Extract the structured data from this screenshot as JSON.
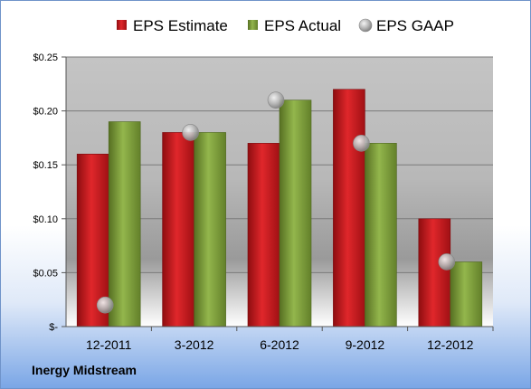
{
  "company": "Inergy Midstream",
  "chart_data": {
    "type": "bar",
    "categories": [
      "12-2011",
      "3-2012",
      "6-2012",
      "9-2012",
      "12-2012"
    ],
    "series": [
      {
        "name": "EPS Estimate",
        "kind": "bar",
        "color": "#c0161a",
        "values": [
          0.16,
          0.18,
          0.17,
          0.22,
          0.1
        ]
      },
      {
        "name": "EPS Actual",
        "kind": "bar",
        "color": "#7d9c3a",
        "values": [
          0.19,
          0.18,
          0.21,
          0.17,
          0.06
        ]
      },
      {
        "name": "EPS GAAP",
        "kind": "scatter",
        "color": "#a9a9a9",
        "values": [
          0.02,
          0.18,
          0.21,
          0.17,
          0.06
        ]
      }
    ],
    "ylim": [
      0,
      0.25
    ],
    "yticks": [
      0,
      0.05,
      0.1,
      0.15,
      0.2,
      0.25
    ],
    "ytick_labels": [
      "$-",
      "$0.05",
      "$0.10",
      "$0.15",
      "$0.20",
      "$0.25"
    ],
    "grid": true,
    "legend_position": "top"
  }
}
